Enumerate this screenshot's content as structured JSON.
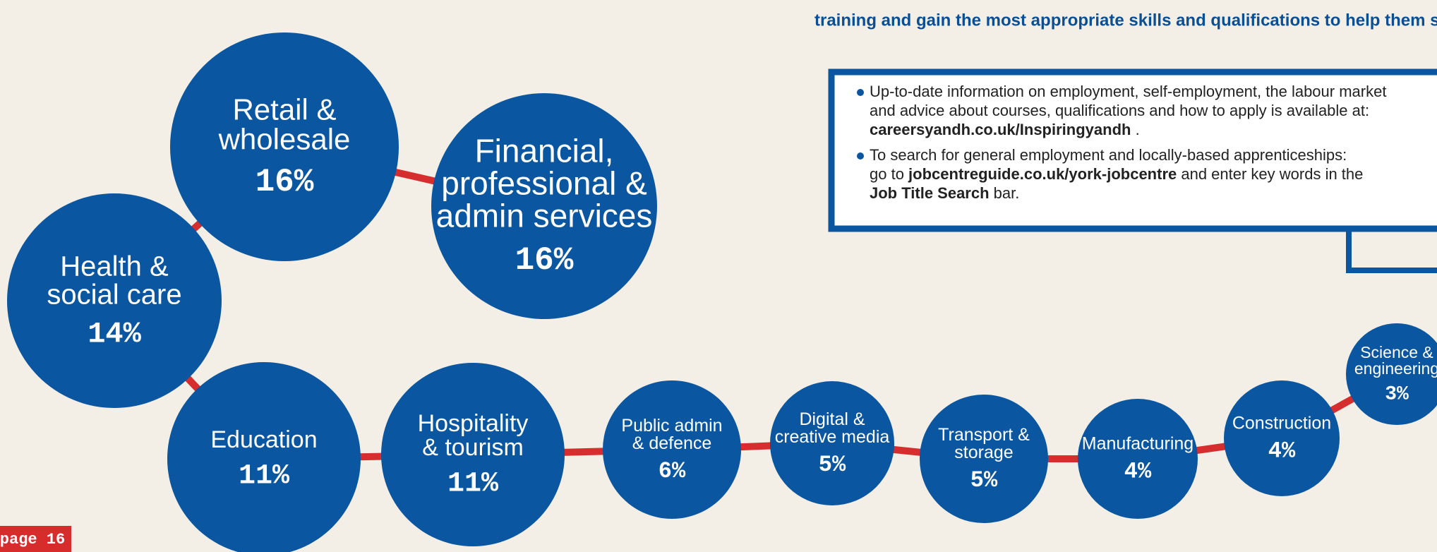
{
  "intro": "training and gain the most appropriate skills and qualifications to help them suc",
  "sectors": [
    {
      "name": [
        "Financial,",
        "professional &",
        "admin services"
      ],
      "share": "16%"
    },
    {
      "name": [
        "Retail &",
        "wholesale"
      ],
      "share": "16%"
    },
    {
      "name": [
        "Health &",
        "social care"
      ],
      "share": "14%"
    },
    {
      "name": [
        "Education"
      ],
      "share": "11%"
    },
    {
      "name": [
        "Hospitality",
        "& tourism"
      ],
      "share": "11%"
    },
    {
      "name": [
        "Public admin",
        "& defence"
      ],
      "share": "6%"
    },
    {
      "name": [
        "Digital &",
        "creative media"
      ],
      "share": "5%"
    },
    {
      "name": [
        "Transport &",
        "storage"
      ],
      "share": "5%"
    },
    {
      "name": [
        "Manufacturing"
      ],
      "share": "4%"
    },
    {
      "name": [
        "Construction"
      ],
      "share": "4%"
    },
    {
      "name": [
        "Science &",
        "engineering"
      ],
      "share": "3%"
    }
  ],
  "info_box": {
    "bullets": [
      {
        "lines": [
          [
            {
              "text": "Up-to-date information on employment, self-employment, the labour market",
              "bold": false
            }
          ],
          [
            {
              "text": "and advice about courses, qualifications and how to apply is available at:",
              "bold": false
            }
          ],
          [
            {
              "text": "careersyandh.co.uk/Inspiringyandh",
              "bold": true
            },
            {
              "text": " .",
              "bold": false
            }
          ]
        ]
      },
      {
        "lines": [
          [
            {
              "text": "To search for general employment and locally-based apprenticeships:",
              "bold": false
            }
          ],
          [
            {
              "text": "go to ",
              "bold": false
            },
            {
              "text": "jobcentreguide.co.uk/york-jobcentre",
              "bold": true
            },
            {
              "text": " and enter key words in the",
              "bold": false
            }
          ],
          [
            {
              "text": "Job Title Search",
              "bold": true
            },
            {
              "text": " bar.",
              "bold": false
            }
          ]
        ]
      }
    ]
  },
  "page_label": "page 16"
}
